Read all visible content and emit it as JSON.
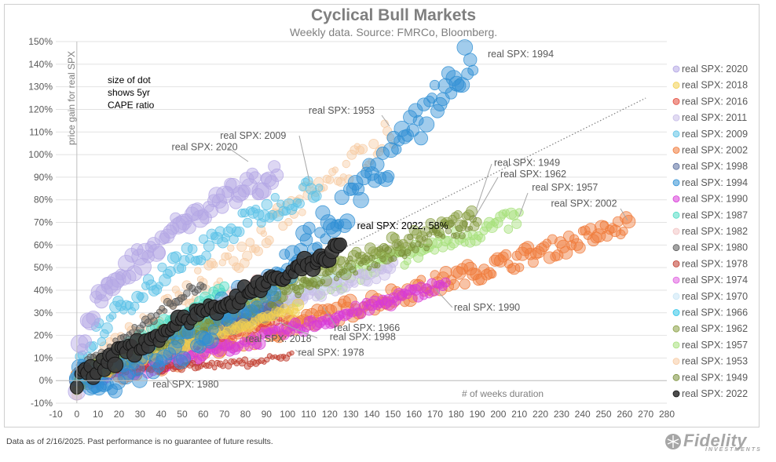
{
  "chart_data": {
    "type": "scatter",
    "title": "Cyclical Bull Markets",
    "subtitle": "Weekly data.  Source: FMRCo, Bloomberg.",
    "xlabel": "# of weeks duration",
    "ylabel": "price gain for real SPX",
    "xlim": [
      -10,
      280
    ],
    "ylim": [
      -10,
      150
    ],
    "x_ticks": [
      "-10",
      "0",
      "10",
      "20",
      "30",
      "40",
      "50",
      "60",
      "70",
      "80",
      "90",
      "100",
      "110",
      "120",
      "130",
      "140",
      "150",
      "160",
      "170",
      "180",
      "190",
      "200",
      "210",
      "220",
      "230",
      "240",
      "250",
      "260",
      "270",
      "280"
    ],
    "y_ticks": [
      "-10%",
      "0%",
      "10%",
      "20%",
      "30%",
      "40%",
      "50%",
      "60%",
      "70%",
      "80%",
      "90%",
      "100%",
      "110%",
      "120%",
      "130%",
      "140%",
      "150%"
    ],
    "grid": true,
    "legend_position": "right",
    "size_note": "size of dot\nshows 5yr\nCAPE ratio",
    "trend_line": {
      "style": "dotted",
      "from": [
        0,
        0
      ],
      "to": [
        270,
        125
      ]
    },
    "series": [
      {
        "name": "real SPX: 2020",
        "color": "#b4a7e5",
        "end_week": 95,
        "end_gain": 92
      },
      {
        "name": "real SPX: 2018",
        "color": "#f2d04f",
        "end_week": 105,
        "end_gain": 32
      },
      {
        "name": "real SPX: 2016",
        "color": "#e34a3b",
        "end_week": 100,
        "end_gain": 28
      },
      {
        "name": "real SPX: 2011",
        "color": "#c8bde8",
        "end_week": 150,
        "end_gain": 50
      },
      {
        "name": "real SPX: 2009",
        "color": "#5cc2e6",
        "end_week": 115,
        "end_gain": 87
      },
      {
        "name": "real SPX: 2002",
        "color": "#f07a3a",
        "end_week": 262,
        "end_gain": 69
      },
      {
        "name": "real SPX: 1998",
        "color": "#5a6e9e",
        "end_week": 95,
        "end_gain": 32
      },
      {
        "name": "real SPX: 1994",
        "color": "#2f8fd4",
        "end_week": 188,
        "end_gain": 144
      },
      {
        "name": "real SPX: 1990",
        "color": "#d83ad8",
        "end_week": 175,
        "end_gain": 43
      },
      {
        "name": "real SPX: 1987",
        "color": "#4fdcc4",
        "end_week": 70,
        "end_gain": 40
      },
      {
        "name": "real SPX: 1982",
        "color": "#f2c4c4",
        "end_week": 90,
        "end_gain": 45
      },
      {
        "name": "real SPX: 1980",
        "color": "#595959",
        "end_week": 60,
        "end_gain": 40
      },
      {
        "name": "real SPX: 1978",
        "color": "#c0392b",
        "end_week": 102,
        "end_gain": 11
      },
      {
        "name": "real SPX: 1974",
        "color": "#e060e0",
        "end_week": 100,
        "end_gain": 38
      },
      {
        "name": "real SPX: 1970",
        "color": "#c9e6f5",
        "end_week": 130,
        "end_gain": 48
      },
      {
        "name": "real SPX: 1966",
        "color": "#2ec4e8",
        "end_week": 80,
        "end_gain": 35
      },
      {
        "name": "real SPX: 1962",
        "color": "#8aa044",
        "end_week": 190,
        "end_gain": 73
      },
      {
        "name": "real SPX: 1957",
        "color": "#a6e07a",
        "end_week": 210,
        "end_gain": 72
      },
      {
        "name": "real SPX: 1953",
        "color": "#f7cba3",
        "end_week": 150,
        "end_gain": 110
      },
      {
        "name": "real SPX: 1949",
        "color": "#7a8f3a",
        "end_week": 188,
        "end_gain": 70
      },
      {
        "name": "real SPX: 2022",
        "color": "#3a3a3a",
        "end_week": 125,
        "end_gain": 58
      }
    ],
    "annotations": [
      {
        "text": "real SPX: 1994",
        "x": 195,
        "y": 143
      },
      {
        "text": "real SPX: 1953",
        "x": 110,
        "y": 118
      },
      {
        "text": "real SPX: 2009",
        "x": 68,
        "y": 107
      },
      {
        "text": "real SPX: 2020",
        "x": 45,
        "y": 102
      },
      {
        "text": "real SPX: 1949",
        "x": 198,
        "y": 95
      },
      {
        "text": "real SPX: 1962",
        "x": 201,
        "y": 90
      },
      {
        "text": "real SPX: 1957",
        "x": 216,
        "y": 84
      },
      {
        "text": "real SPX: 2002",
        "x": 225,
        "y": 77
      },
      {
        "text": "real SPX: 2022, 58%",
        "x": 133,
        "y": 67
      },
      {
        "text": "real SPX: 1990",
        "x": 179,
        "y": 31
      },
      {
        "text": "real SPX: 1966",
        "x": 122,
        "y": 22
      },
      {
        "text": "real SPX: 2018",
        "x": 80,
        "y": 17
      },
      {
        "text": "real SPX: 1998",
        "x": 120,
        "y": 18
      },
      {
        "text": "real SPX: 1978",
        "x": 105,
        "y": 11
      },
      {
        "text": "real SPX: 1980",
        "x": 36,
        "y": -3
      }
    ]
  },
  "footer": {
    "disclaimer": "Data as of 2/16/2025. Past performance is no guarantee of future results."
  },
  "logo": {
    "text": "Fidelity",
    "subtext": "INVESTMENTS"
  }
}
